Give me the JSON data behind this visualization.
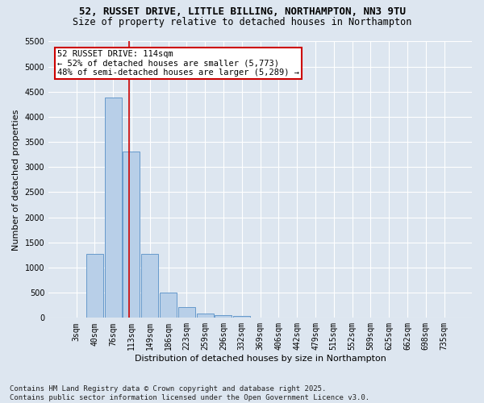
{
  "title_line1": "52, RUSSET DRIVE, LITTLE BILLING, NORTHAMPTON, NN3 9TU",
  "title_line2": "Size of property relative to detached houses in Northampton",
  "xlabel": "Distribution of detached houses by size in Northampton",
  "ylabel": "Number of detached properties",
  "categories": [
    "3sqm",
    "40sqm",
    "76sqm",
    "113sqm",
    "149sqm",
    "186sqm",
    "223sqm",
    "259sqm",
    "296sqm",
    "332sqm",
    "369sqm",
    "406sqm",
    "442sqm",
    "479sqm",
    "515sqm",
    "552sqm",
    "589sqm",
    "625sqm",
    "662sqm",
    "698sqm",
    "735sqm"
  ],
  "values": [
    0,
    1270,
    4380,
    3310,
    1280,
    500,
    215,
    90,
    55,
    30,
    10,
    0,
    0,
    0,
    0,
    0,
    0,
    0,
    0,
    0,
    0
  ],
  "bar_color": "#b8cfe8",
  "bar_edge_color": "#6699cc",
  "vline_color": "#cc0000",
  "annotation_text": "52 RUSSET DRIVE: 114sqm\n← 52% of detached houses are smaller (5,773)\n48% of semi-detached houses are larger (5,289) →",
  "annotation_box_color": "white",
  "annotation_box_edge": "#cc0000",
  "ylim_max": 5500,
  "yticks": [
    0,
    500,
    1000,
    1500,
    2000,
    2500,
    3000,
    3500,
    4000,
    4500,
    5000,
    5500
  ],
  "bg_color": "#dde6f0",
  "grid_color": "white",
  "footer": "Contains HM Land Registry data © Crown copyright and database right 2025.\nContains public sector information licensed under the Open Government Licence v3.0.",
  "title1_fontsize": 9,
  "title2_fontsize": 8.5,
  "axis_label_fontsize": 8,
  "tick_fontsize": 7,
  "annot_fontsize": 7.5,
  "footer_fontsize": 6.5,
  "vline_x_index": 2.87
}
